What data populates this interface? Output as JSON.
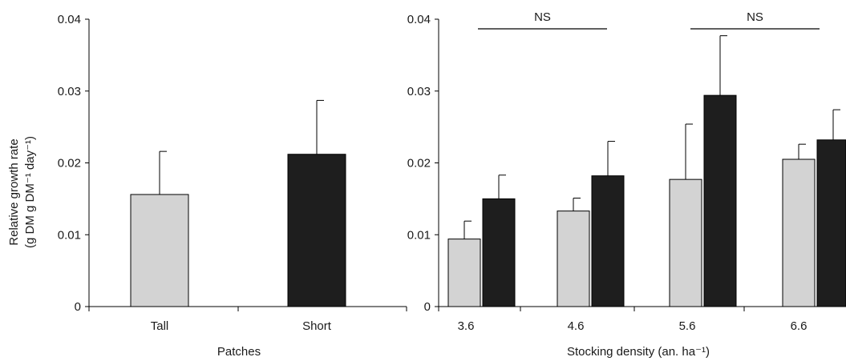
{
  "colors": {
    "tall": "#d3d3d3",
    "short": "#1e1e1e",
    "axis": "#000000"
  },
  "chart_data": [
    {
      "type": "bar",
      "xlabel": "Patches",
      "ylabel_line1": "Relative growth rate",
      "ylabel_line2": "(g DM g DM⁻¹ day⁻¹)",
      "ylim": [
        0,
        0.04
      ],
      "yticks": [
        "0",
        "0.01",
        "0.02",
        "0.03",
        "0.04"
      ],
      "categories": [
        "Tall",
        "Short"
      ],
      "values": [
        0.0156,
        0.0212
      ],
      "errors": [
        0.006,
        0.0075
      ],
      "error_bars": true
    },
    {
      "type": "bar",
      "xlabel": "Stocking density (an. ha⁻¹)",
      "ylim": [
        0,
        0.04
      ],
      "yticks": [
        "0",
        "0.01",
        "0.02",
        "0.03",
        "0.04"
      ],
      "categories": [
        "3.6",
        "4.6",
        "5.6",
        "6.6"
      ],
      "series": [
        {
          "values": [
            0.0094,
            0.0133,
            0.0177,
            0.0205
          ],
          "errors": [
            0.0025,
            0.0018,
            0.0077,
            0.0021
          ]
        },
        {
          "values": [
            0.015,
            0.0182,
            0.0294,
            0.0232
          ],
          "errors": [
            0.0033,
            0.0048,
            0.0083,
            0.0042
          ]
        }
      ],
      "annotations": [
        "NS",
        "NS"
      ],
      "error_bars": true
    }
  ]
}
